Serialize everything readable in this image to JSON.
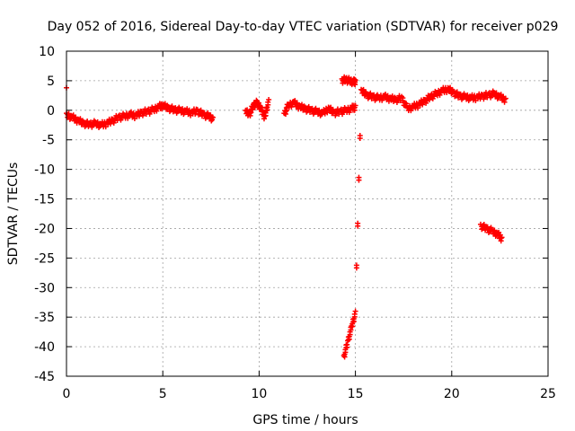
{
  "chart_data": {
    "type": "scatter",
    "title": "Day 052 of 2016, Sidereal Day-to-day VTEC variation (SDTVAR) for receiver p029",
    "xlabel": "GPS time / hours",
    "ylabel": "SDTVAR / TECUs",
    "xlim": [
      0,
      25
    ],
    "ylim": [
      -45,
      10
    ],
    "x_ticks": [
      0,
      5,
      10,
      15,
      20,
      25
    ],
    "y_ticks": [
      10,
      5,
      0,
      -5,
      -10,
      -15,
      -20,
      -25,
      -30,
      -35,
      -40,
      -45
    ],
    "grid": true,
    "marker_color": "#ff0000",
    "series": [
      {
        "values_sampled": true,
        "x": [
          0.0,
          0.3,
          0.6,
          0.9,
          1.2,
          1.5,
          1.8,
          2.1,
          2.4,
          2.7,
          3.0,
          3.3,
          3.6,
          3.9,
          4.2,
          4.5,
          4.8,
          5.0,
          5.3,
          5.6,
          5.9,
          6.2,
          6.5,
          6.8,
          7.1,
          7.4,
          7.6,
          9.3,
          9.5,
          9.7,
          9.9,
          10.1,
          10.3,
          10.5,
          11.3,
          11.5,
          11.8,
          12.1,
          12.4,
          12.7,
          13.0,
          13.3,
          13.6,
          13.9,
          14.2,
          14.5,
          14.8,
          15.0,
          14.3,
          14.5,
          14.7,
          14.9,
          15.0,
          14.4,
          14.6,
          14.8,
          15.0,
          15.3,
          15.6,
          15.9,
          16.2,
          16.5,
          16.8,
          17.1,
          17.4,
          17.7,
          18.0,
          18.3,
          18.6,
          18.9,
          19.2,
          19.5,
          19.8,
          20.1,
          20.4,
          20.7,
          21.0,
          21.3,
          21.6,
          21.9,
          22.2,
          22.5,
          22.8,
          21.5,
          21.8,
          22.1,
          22.4,
          22.6
        ],
        "y": [
          -0.5,
          -1.0,
          -1.5,
          -2.0,
          -2.2,
          -2.0,
          -2.3,
          -2.0,
          -1.5,
          -1.0,
          -0.8,
          -0.5,
          -0.7,
          -0.2,
          0.0,
          0.3,
          0.8,
          1.0,
          0.6,
          0.3,
          0.2,
          0.0,
          -0.2,
          0.1,
          -0.5,
          -0.8,
          -1.2,
          0.0,
          -0.5,
          1.0,
          1.5,
          0.5,
          -1.0,
          1.8,
          -0.5,
          1.0,
          1.5,
          0.8,
          0.5,
          0.2,
          0.0,
          -0.3,
          0.5,
          -0.2,
          0.0,
          0.2,
          0.5,
          0.8,
          5.3,
          5.4,
          5.2,
          5.0,
          5.1,
          -41.5,
          -39.0,
          -36.5,
          -34.0,
          3.5,
          2.8,
          2.5,
          2.3,
          2.5,
          2.2,
          2.0,
          2.3,
          0.5,
          0.8,
          1.2,
          1.8,
          2.5,
          3.0,
          3.5,
          3.8,
          3.2,
          2.6,
          2.5,
          2.3,
          2.4,
          2.6,
          2.8,
          3.0,
          2.5,
          2.0,
          -19.3,
          -19.8,
          -20.2,
          -20.8,
          -21.5
        ]
      }
    ],
    "extra_points": [
      {
        "x": 0.0,
        "y": 3.8
      }
    ]
  }
}
